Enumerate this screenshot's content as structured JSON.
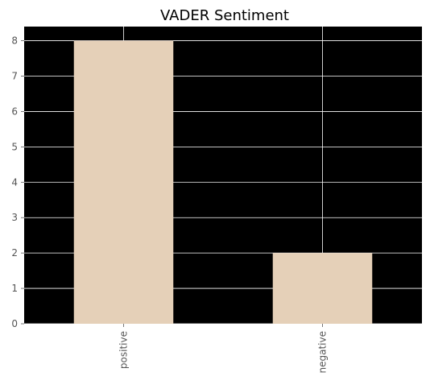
{
  "chart_data": {
    "type": "bar",
    "title": "VADER Sentiment",
    "categories": [
      "positive",
      "negative"
    ],
    "values": [
      8,
      2
    ],
    "ylim": [
      0,
      8.4
    ],
    "yticks": [
      "0",
      "1",
      "2",
      "3",
      "4",
      "5",
      "6",
      "7",
      "8"
    ],
    "xlabel": "",
    "ylabel": "",
    "grid": true,
    "colors": {
      "plot_background": "#000000",
      "bar": "#e5d0b8",
      "grid": "#ffffff",
      "tick_label": "#555555"
    }
  }
}
